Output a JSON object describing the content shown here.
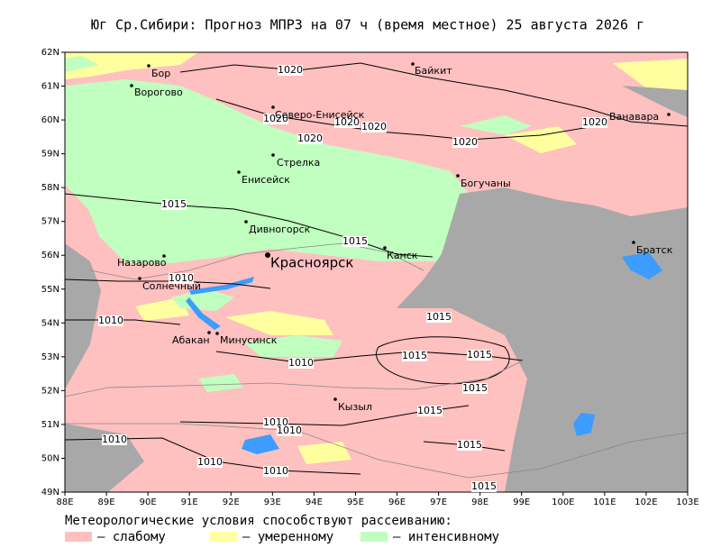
{
  "header": {
    "title": "Юг Ср.Сибири:  Прогноз МПРЗ на 07 ч (время местное) 25 августа 2026 г"
  },
  "axes": {
    "lat_labels": [
      "62N",
      "61N",
      "60N",
      "59N",
      "58N",
      "57N",
      "56N",
      "55N",
      "54N",
      "53N",
      "52N",
      "51N",
      "50N",
      "49N"
    ],
    "lon_labels": [
      "88E",
      "89E",
      "90E",
      "91E",
      "92E",
      "93E",
      "94E",
      "95E",
      "96E",
      "97E",
      "98E",
      "99E",
      "100E",
      "101E",
      "102E",
      "103E"
    ]
  },
  "cities": [
    {
      "name": "Бор"
    },
    {
      "name": "Байкит"
    },
    {
      "name": "Ворогово"
    },
    {
      "name": "Северо-Енисейск"
    },
    {
      "name": "Ванавара"
    },
    {
      "name": "Стрелка"
    },
    {
      "name": "Енисейск"
    },
    {
      "name": "Богучаны"
    },
    {
      "name": "Дивногорск"
    },
    {
      "name": "Красноярск"
    },
    {
      "name": "Канск"
    },
    {
      "name": "Братск"
    },
    {
      "name": "Назарово"
    },
    {
      "name": "Солнечный"
    },
    {
      "name": "Абакан"
    },
    {
      "name": "Минусинск"
    },
    {
      "name": "Кызыл"
    }
  ],
  "isobars": [
    "1020",
    "1020",
    "1020",
    "1020",
    "1020",
    "1020",
    "1020",
    "1015",
    "1015",
    "1015",
    "1015",
    "1015",
    "1015",
    "1015",
    "1015",
    "1015",
    "1010",
    "1010",
    "1010",
    "1010",
    "1010",
    "1010",
    "1010",
    "1010"
  ],
  "legend": {
    "caption": "Метеорологические условия способствуют рассеиванию:",
    "items": [
      {
        "label": "– слабому",
        "color": "#ffc0c0"
      },
      {
        "label": "– умеренному",
        "color": "#ffffa0"
      },
      {
        "label": "– интенсивному",
        "color": "#c0ffc0"
      }
    ]
  }
}
